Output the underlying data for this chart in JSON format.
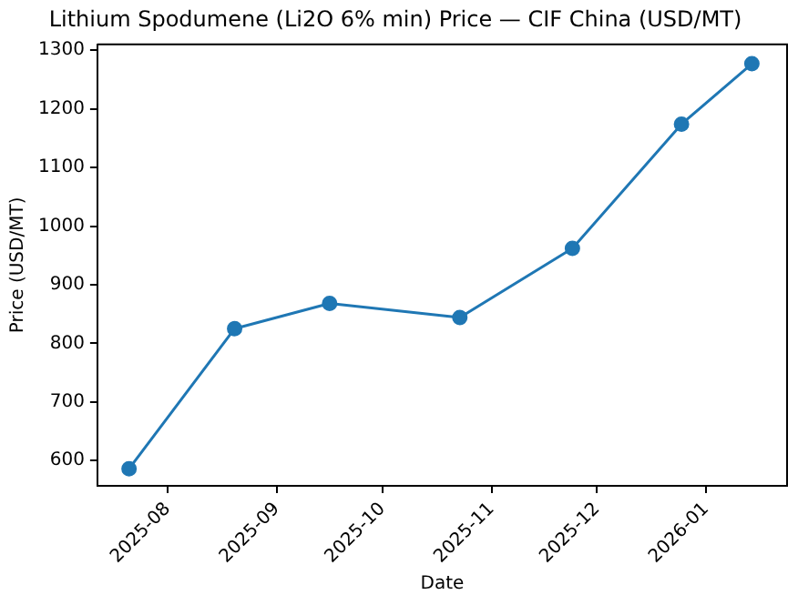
{
  "chart_data": {
    "type": "line",
    "title": "Lithium Spodumene (Li2O 6% min) Price — CIF China (USD/MT)",
    "xlabel": "Date",
    "ylabel": "Price (USD/MT)",
    "x": [
      "2025-07-21",
      "2025-08-20",
      "2025-09-16",
      "2025-10-23",
      "2025-11-24",
      "2025-12-25",
      "2026-01-14"
    ],
    "series": [
      {
        "color": "#1f77b4",
        "values": [
          586,
          825,
          868,
          844,
          962,
          1174,
          1277
        ]
      }
    ],
    "xlim": [
      "2025-07-12",
      "2026-01-24"
    ],
    "xticks": [
      "2025-08",
      "2025-09",
      "2025-10",
      "2025-11",
      "2025-12",
      "2026-01"
    ],
    "ylim": [
      557,
      1310
    ],
    "yticks": [
      600,
      700,
      800,
      900,
      1000,
      1100,
      1200,
      1300
    ],
    "grid": false,
    "legend": false,
    "marker": "circle",
    "line_style": "solid"
  }
}
